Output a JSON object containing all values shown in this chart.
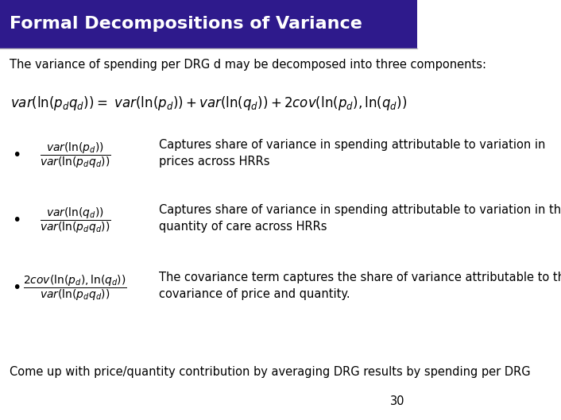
{
  "title": "Formal Decompositions of Variance",
  "title_bg_color": "#2E1A8C",
  "title_text_color": "#FFFFFF",
  "bg_color": "#FFFFFF",
  "body_text_color": "#000000",
  "intro_text": "The variance of spending per DRG d may be decomposed into three components:",
  "main_formula": "$var(\\ln(p_d q_d)) = \\ var(\\ln(p_d)) + var(\\ln(q_d)) + 2cov(\\ln(p_d), \\ln(q_d))$",
  "bullet1_formula": "$\\dfrac{var(\\ln(p_d))}{var(\\ln(p_d q_d))}$",
  "bullet1_text": "Captures share of variance in spending attributable to variation in\nprices across HRRs",
  "bullet2_formula": "$\\dfrac{var(\\ln(q_d))}{var(\\ln(p_d q_d))}$",
  "bullet2_text": "Captures share of variance in spending attributable to variation in the\nquantity of care across HRRs",
  "bullet3_formula": "$\\dfrac{2cov(\\ln(p_d), \\ln(q_d))}{var(\\ln(p_d q_d))}$",
  "bullet3_text": "The covariance term captures the share of variance attributable to the\ncovariance of price and quantity.",
  "footer_text": "Come up with price/quantity contribution by averaging DRG results by spending per DRG",
  "page_number": "30",
  "title_font_size": 16,
  "body_font_size": 10.5,
  "formula_font_size": 12,
  "bullet_formula_font_size": 10
}
